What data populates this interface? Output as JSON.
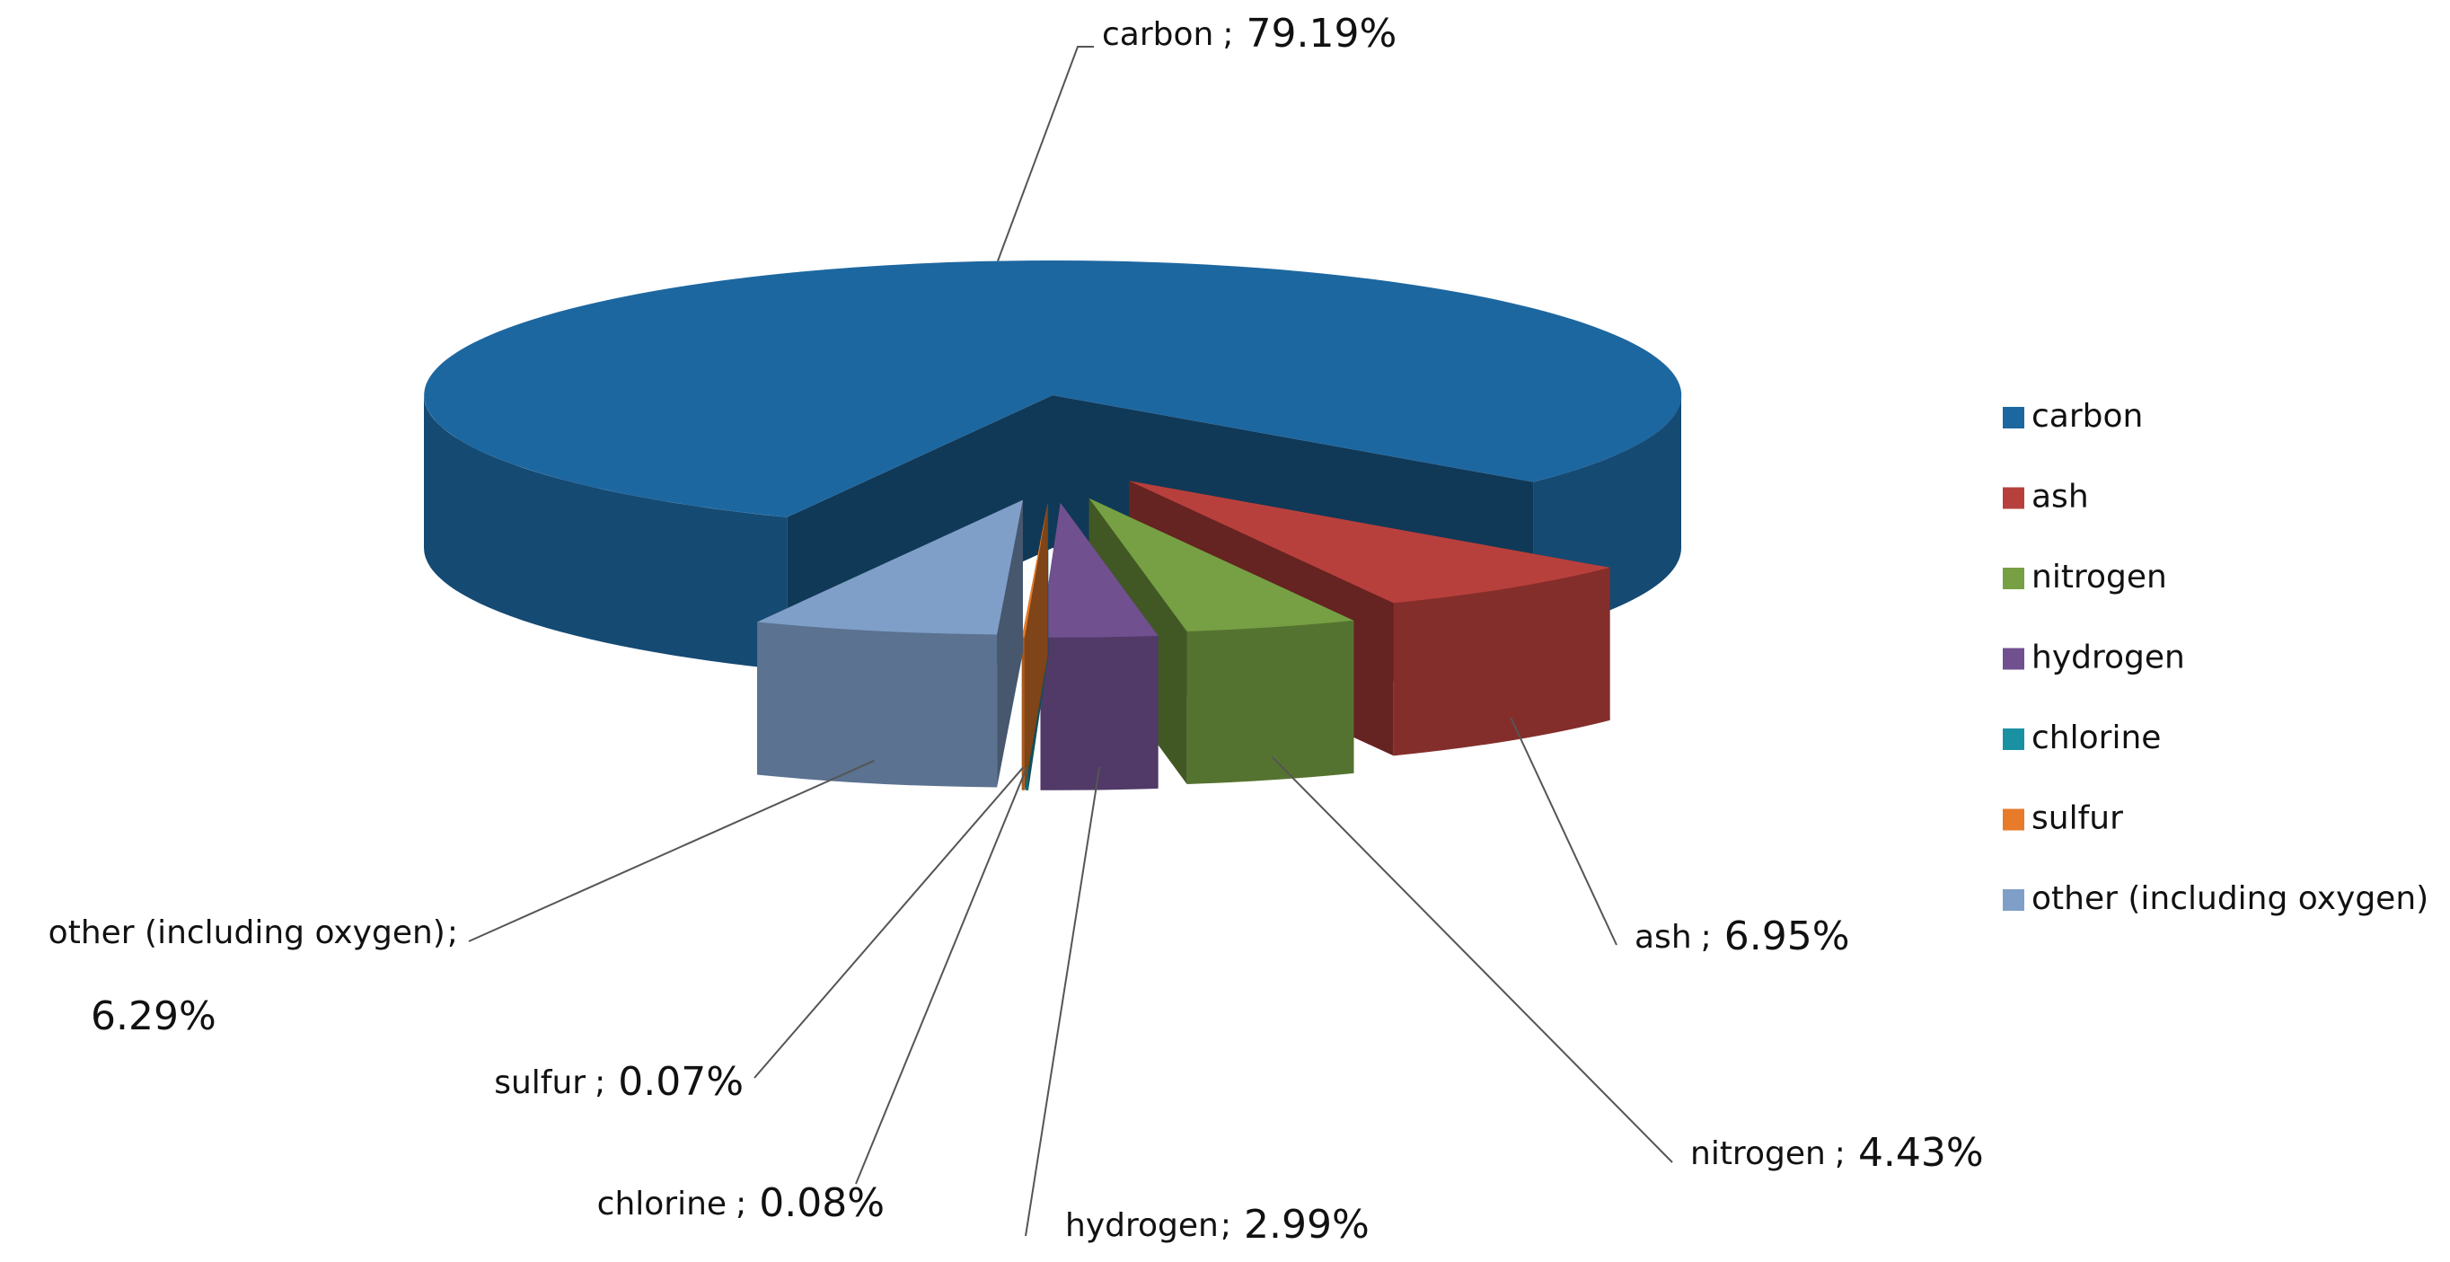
{
  "chart_data": {
    "type": "pie3d",
    "categories": [
      "carbon",
      "ash",
      "nitrogen",
      "hydrogen",
      "chlorine",
      "sulfur",
      "other (including oxygen)"
    ],
    "values": [
      79.19,
      6.95,
      4.43,
      2.99,
      0.08,
      0.07,
      6.29
    ],
    "value_labels": [
      "79.19%",
      "6.95%",
      "4.43%",
      "2.99%",
      "0.08%",
      "0.07%",
      "6.29%"
    ],
    "label_separator": ";",
    "colors": [
      "#1d67a0",
      "#b8403c",
      "#76a043",
      "#70508f",
      "#1a91a3",
      "#e77b2a",
      "#7f9fc8"
    ],
    "legend": "right"
  }
}
